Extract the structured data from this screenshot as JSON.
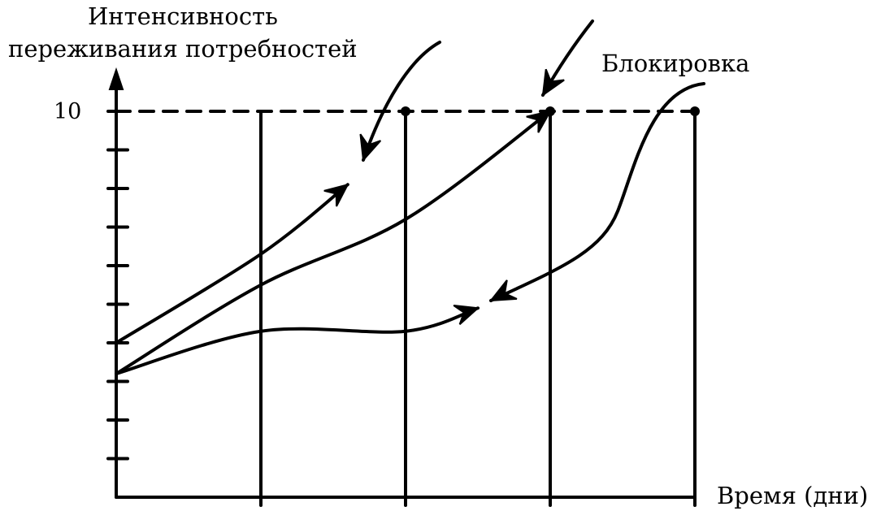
{
  "chart_data": {
    "type": "line",
    "ylabel_lines": [
      "Интенсивность",
      "переживания потребностей"
    ],
    "xlabel": "Время (дни)",
    "annotation": "Блокировка",
    "y_tick_label": "10",
    "ylim": [
      0,
      10
    ],
    "xlim": [
      0,
      4
    ],
    "y_ticks": [
      1,
      2,
      3,
      4,
      5,
      6,
      7,
      8,
      9,
      10
    ],
    "x_gridlines": [
      1,
      2,
      3,
      4
    ],
    "reference_line": {
      "y": 10,
      "style": "dashed",
      "x": [
        0,
        4
      ]
    },
    "reference_points": [
      {
        "x": 2,
        "y": 10
      },
      {
        "x": 3,
        "y": 10
      },
      {
        "x": 4,
        "y": 10
      }
    ],
    "series": [
      {
        "points": [
          {
            "x": 0,
            "y": 4
          },
          {
            "x": 1,
            "y": 6.3
          },
          {
            "x": 1.6,
            "y": 8.1
          }
        ]
      },
      {
        "points": [
          {
            "x": 0,
            "y": 3.2
          },
          {
            "x": 1,
            "y": 5.5
          },
          {
            "x": 2,
            "y": 7.2
          },
          {
            "x": 3,
            "y": 10
          }
        ]
      },
      {
        "points": [
          {
            "x": 0,
            "y": 3.2
          },
          {
            "x": 1,
            "y": 4.3
          },
          {
            "x": 2,
            "y": 4.3
          },
          {
            "x": 2.5,
            "y": 4.9
          }
        ]
      }
    ]
  }
}
